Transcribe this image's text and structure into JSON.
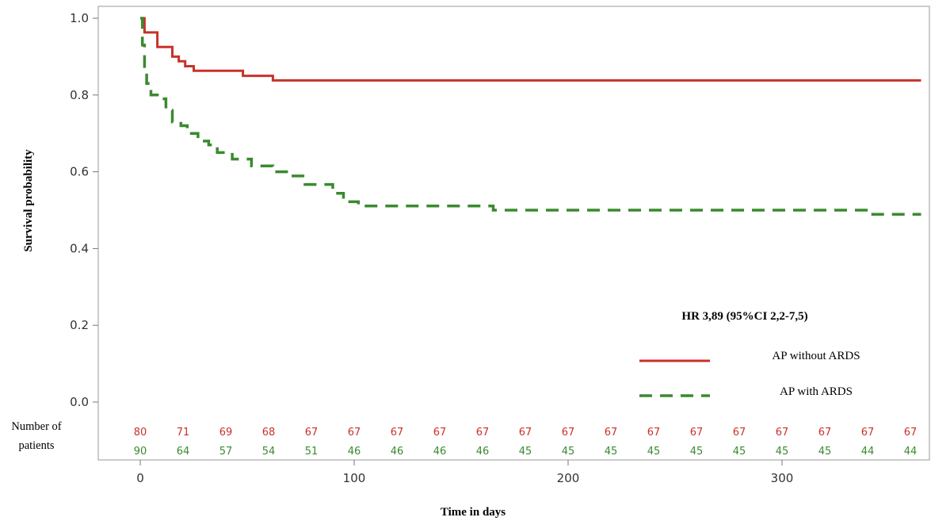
{
  "chart_data": {
    "type": "line",
    "step": true,
    "xlabel": "Time in days",
    "ylabel": "Survival probability",
    "xlim": [
      -15,
      365
    ],
    "ylim": [
      0.0,
      1.0
    ],
    "xticks": [
      0,
      100,
      200,
      300
    ],
    "yticks": [
      0.0,
      0.2,
      0.4,
      0.6,
      0.8,
      1.0
    ],
    "ytick_labels": [
      "0.0",
      "0.2",
      "0.4",
      "0.6",
      "0.8",
      "1.0"
    ],
    "grid": false,
    "legend_position": "bottom-right",
    "annotation": "HR 3,89 (95%CI 2,2-7,5)",
    "series": [
      {
        "name": "AP without ARDS",
        "color": "#c8322b",
        "dash": "solid",
        "points": [
          [
            0,
            1.0
          ],
          [
            2,
            0.963
          ],
          [
            8,
            0.925
          ],
          [
            15,
            0.9
          ],
          [
            18,
            0.888
          ],
          [
            21,
            0.875
          ],
          [
            25,
            0.863
          ],
          [
            48,
            0.85
          ],
          [
            62,
            0.838
          ],
          [
            365,
            0.838
          ]
        ]
      },
      {
        "name": "AP with ARDS",
        "color": "#3a8a2f",
        "dash": "dashed",
        "points": [
          [
            0,
            1.0
          ],
          [
            1,
            0.93
          ],
          [
            2,
            0.87
          ],
          [
            3,
            0.83
          ],
          [
            5,
            0.8
          ],
          [
            8,
            0.79
          ],
          [
            12,
            0.76
          ],
          [
            15,
            0.73
          ],
          [
            19,
            0.72
          ],
          [
            22,
            0.7
          ],
          [
            27,
            0.68
          ],
          [
            32,
            0.67
          ],
          [
            36,
            0.65
          ],
          [
            43,
            0.633
          ],
          [
            52,
            0.615
          ],
          [
            62,
            0.6
          ],
          [
            70,
            0.589
          ],
          [
            77,
            0.567
          ],
          [
            90,
            0.544
          ],
          [
            95,
            0.522
          ],
          [
            102,
            0.511
          ],
          [
            165,
            0.5
          ],
          [
            340,
            0.489
          ],
          [
            365,
            0.489
          ]
        ]
      }
    ],
    "number_at_risk": {
      "title_line1": "Number of",
      "title_line2": "patients",
      "times": [
        0,
        20,
        40,
        60,
        80,
        100,
        120,
        140,
        160,
        180,
        200,
        220,
        240,
        260,
        280,
        300,
        320,
        340,
        360
      ],
      "without_ards": [
        "80",
        "71",
        "69",
        "68",
        "67",
        "67",
        "67",
        "67",
        "67",
        "67",
        "67",
        "67",
        "67",
        "67",
        "67",
        "67",
        "67",
        "67",
        "67"
      ],
      "with_ards": [
        "90",
        "64",
        "57",
        "54",
        "51",
        "46",
        "46",
        "46",
        "46",
        "45",
        "45",
        "45",
        "45",
        "45",
        "45",
        "45",
        "45",
        "44",
        "44"
      ]
    }
  }
}
